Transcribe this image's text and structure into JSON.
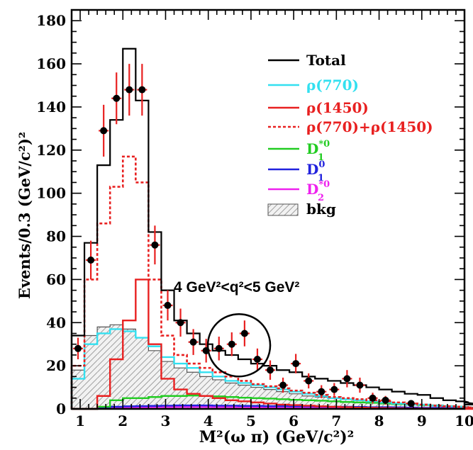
{
  "chart_data": {
    "type": "histogram",
    "xlabel": "M²(ω π) (GeV/c²)²",
    "ylabel": "Events/0.3 (GeV/c²)²",
    "xlim": [
      0.8,
      10.0
    ],
    "ylim": [
      0,
      185
    ],
    "x_ticks": [
      1,
      2,
      3,
      4,
      5,
      6,
      7,
      8,
      9,
      10
    ],
    "y_ticks": [
      0,
      20,
      40,
      60,
      80,
      100,
      120,
      140,
      160,
      180
    ],
    "bin_width": 0.3,
    "bin_start": 0.8,
    "annotation": "4 GeV²<q²<5 GeV²",
    "highlight": {
      "type": "circle",
      "center_x": 4.72,
      "center_y": 29.5,
      "note": "circled region of excess data points"
    },
    "legend_position": "top-right",
    "legend": [
      {
        "key": "total",
        "label": "Total",
        "color": "#000000",
        "style": "solid"
      },
      {
        "key": "rho770",
        "label": "ρ(770)",
        "color": "#33e0f0",
        "style": "solid"
      },
      {
        "key": "rho1450",
        "label": "ρ(1450)",
        "color": "#e82020",
        "style": "solid"
      },
      {
        "key": "rhosum",
        "label": "ρ(770)+ρ(1450)",
        "color": "#e82020",
        "style": "dotted"
      },
      {
        "key": "d1star",
        "label": "D",
        "sup": "*0",
        "sub": "1",
        "color": "#22cc22",
        "style": "solid"
      },
      {
        "key": "d10",
        "label": "D",
        "sup": "0",
        "sub": "1",
        "color": "#2222dd",
        "style": "solid"
      },
      {
        "key": "d2star",
        "label": "D",
        "sup": "*0",
        "sub": "2",
        "color": "#ee22ee",
        "style": "solid"
      },
      {
        "key": "bkg",
        "label": "bkg",
        "color": "#777777",
        "style": "hatched"
      }
    ],
    "series": [
      {
        "name": "Total",
        "key": "total",
        "values": [
          34,
          77,
          113,
          134,
          167,
          143,
          82,
          55,
          41,
          35,
          30,
          27,
          25,
          23,
          21,
          20,
          18,
          17,
          15,
          14,
          13,
          12,
          11,
          10,
          9,
          8,
          7,
          6.5,
          5,
          4,
          3.5,
          3,
          2
        ]
      },
      {
        "name": "ρ(770)",
        "key": "rho770",
        "values": [
          14,
          30,
          35,
          37,
          36,
          33,
          29,
          24,
          21,
          19,
          17,
          15,
          13,
          12,
          11,
          10,
          9,
          8,
          7,
          6,
          5,
          4.5,
          4,
          3.5,
          3,
          2.5,
          2,
          2,
          1.5,
          1.2,
          1,
          0.8,
          0.5
        ]
      },
      {
        "name": "ρ(1450)",
        "key": "rho1450",
        "values": [
          0,
          0,
          6,
          23,
          41,
          60,
          30,
          14,
          9,
          7,
          6,
          5,
          4,
          3.5,
          3,
          2.5,
          2,
          1.8,
          1.5,
          1.2,
          1,
          0.8,
          0.6,
          0.5,
          0.4,
          0.3,
          0.2,
          0.2,
          0.1,
          0.1,
          0.1,
          0,
          0
        ]
      },
      {
        "name": "ρ(770)+ρ(1450)",
        "key": "rhosum",
        "values": [
          20,
          60,
          86,
          103,
          117,
          105,
          60,
          34,
          25,
          21,
          19,
          17,
          15,
          13,
          11.5,
          10.5,
          9.5,
          8.5,
          7.5,
          6.5,
          5.5,
          5,
          4.5,
          4,
          3.5,
          3,
          2.5,
          2,
          1.5,
          1.2,
          1,
          0.8,
          0.5
        ]
      },
      {
        "name": "D1*0",
        "key": "d1star",
        "values": [
          0,
          0,
          1,
          4,
          5,
          5,
          5.5,
          6,
          6,
          6.2,
          6,
          5.8,
          5.5,
          5.2,
          5,
          4.8,
          4.5,
          4.2,
          4,
          3.8,
          3.5,
          3.2,
          3,
          2.8,
          2.5,
          2.2,
          2,
          1.8,
          1.5,
          1.2,
          1,
          0.8,
          0.5
        ]
      },
      {
        "name": "D1 0",
        "key": "d10",
        "values": [
          0,
          0,
          0.5,
          1,
          1.2,
          1.3,
          1.4,
          1.5,
          1.6,
          1.6,
          1.6,
          1.5,
          1.5,
          1.4,
          1.4,
          1.3,
          1.3,
          1.2,
          1.2,
          1.1,
          1.0,
          1.0,
          0.9,
          0.8,
          0.8,
          0.7,
          0.6,
          0.5,
          0.5,
          0.4,
          0.3,
          0.2,
          0.1
        ]
      },
      {
        "name": "D2*0",
        "key": "d2star",
        "values": [
          0,
          0,
          0.3,
          0.5,
          0.6,
          0.7,
          0.8,
          0.8,
          0.9,
          0.9,
          0.9,
          0.8,
          0.8,
          0.8,
          0.7,
          0.7,
          0.7,
          0.6,
          0.6,
          0.5,
          0.5,
          0.5,
          0.4,
          0.4,
          0.3,
          0.3,
          0.3,
          0.2,
          0.2,
          0.2,
          0.1,
          0.1,
          0.1
        ]
      },
      {
        "name": "bkg",
        "key": "bkg",
        "values": [
          18,
          34,
          38,
          39,
          37,
          33,
          27,
          22,
          19,
          17,
          15,
          13.5,
          12,
          11,
          10,
          9,
          8,
          7,
          6,
          5.5,
          5,
          4.5,
          4,
          3.5,
          3,
          2.7,
          2.4,
          2.1,
          1.8,
          1.5,
          1.2,
          1,
          0.6
        ]
      }
    ],
    "data_points": [
      {
        "x": 0.95,
        "y": 28,
        "err": 5
      },
      {
        "x": 1.25,
        "y": 69,
        "err": 9
      },
      {
        "x": 1.55,
        "y": 129,
        "err": 12
      },
      {
        "x": 1.85,
        "y": 144,
        "err": 12
      },
      {
        "x": 2.15,
        "y": 148,
        "err": 12
      },
      {
        "x": 2.45,
        "y": 148,
        "err": 12
      },
      {
        "x": 2.75,
        "y": 76,
        "err": 9
      },
      {
        "x": 3.05,
        "y": 48,
        "err": 7
      },
      {
        "x": 3.35,
        "y": 40,
        "err": 6.5
      },
      {
        "x": 3.65,
        "y": 31,
        "err": 6
      },
      {
        "x": 3.95,
        "y": 27,
        "err": 5.5
      },
      {
        "x": 4.25,
        "y": 28,
        "err": 5.5
      },
      {
        "x": 4.55,
        "y": 30,
        "err": 5.5
      },
      {
        "x": 4.85,
        "y": 35,
        "err": 6
      },
      {
        "x": 5.15,
        "y": 23,
        "err": 5
      },
      {
        "x": 5.45,
        "y": 18,
        "err": 4.5
      },
      {
        "x": 5.75,
        "y": 11,
        "err": 3.5
      },
      {
        "x": 6.05,
        "y": 21,
        "err": 4.5
      },
      {
        "x": 6.35,
        "y": 13,
        "err": 3.5
      },
      {
        "x": 6.65,
        "y": 8,
        "err": 3
      },
      {
        "x": 6.95,
        "y": 9,
        "err": 3
      },
      {
        "x": 7.25,
        "y": 14,
        "err": 4
      },
      {
        "x": 7.55,
        "y": 11,
        "err": 3.5
      },
      {
        "x": 7.85,
        "y": 5,
        "err": 2.5
      },
      {
        "x": 8.15,
        "y": 4,
        "err": 2
      },
      {
        "x": 8.75,
        "y": 2.5,
        "err": 1.5
      }
    ]
  }
}
